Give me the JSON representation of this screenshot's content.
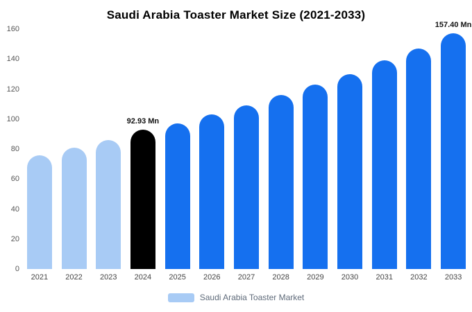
{
  "title": "Saudi Arabia Toaster Market Size (2021-2033)",
  "legend": {
    "label": "Saudi Arabia Toaster Market",
    "swatch_color": "#a8cbf5"
  },
  "colors": {
    "historical": "#a8cbf5",
    "base_year": "#000000",
    "forecast": "#1570ef",
    "axis_text": "#555555",
    "annotation_text": "#111111"
  },
  "annotations": [
    {
      "year": "2024",
      "text": "92.93 Mn"
    },
    {
      "year": "2033",
      "text": "157.40 Mn"
    }
  ],
  "chart_data": {
    "type": "bar",
    "title": "Saudi Arabia Toaster Market Size (2021-2033)",
    "categories": [
      "2021",
      "2022",
      "2023",
      "2024",
      "2025",
      "2026",
      "2027",
      "2028",
      "2029",
      "2030",
      "2031",
      "2032",
      "2033"
    ],
    "values": [
      76,
      81,
      86,
      92.93,
      97,
      103,
      109,
      116,
      123,
      130,
      139,
      147,
      157.4
    ],
    "unit": "Mn",
    "bar_colors": [
      "#a8cbf5",
      "#a8cbf5",
      "#a8cbf5",
      "#000000",
      "#1570ef",
      "#1570ef",
      "#1570ef",
      "#1570ef",
      "#1570ef",
      "#1570ef",
      "#1570ef",
      "#1570ef",
      "#1570ef"
    ],
    "xlabel": "",
    "ylabel": "",
    "ylim": [
      0,
      160
    ],
    "yticks": [
      0,
      20,
      40,
      60,
      80,
      100,
      120,
      140,
      160
    ],
    "grid": false,
    "legend_position": "bottom",
    "legend_entries": [
      "Saudi Arabia Toaster Market"
    ]
  }
}
